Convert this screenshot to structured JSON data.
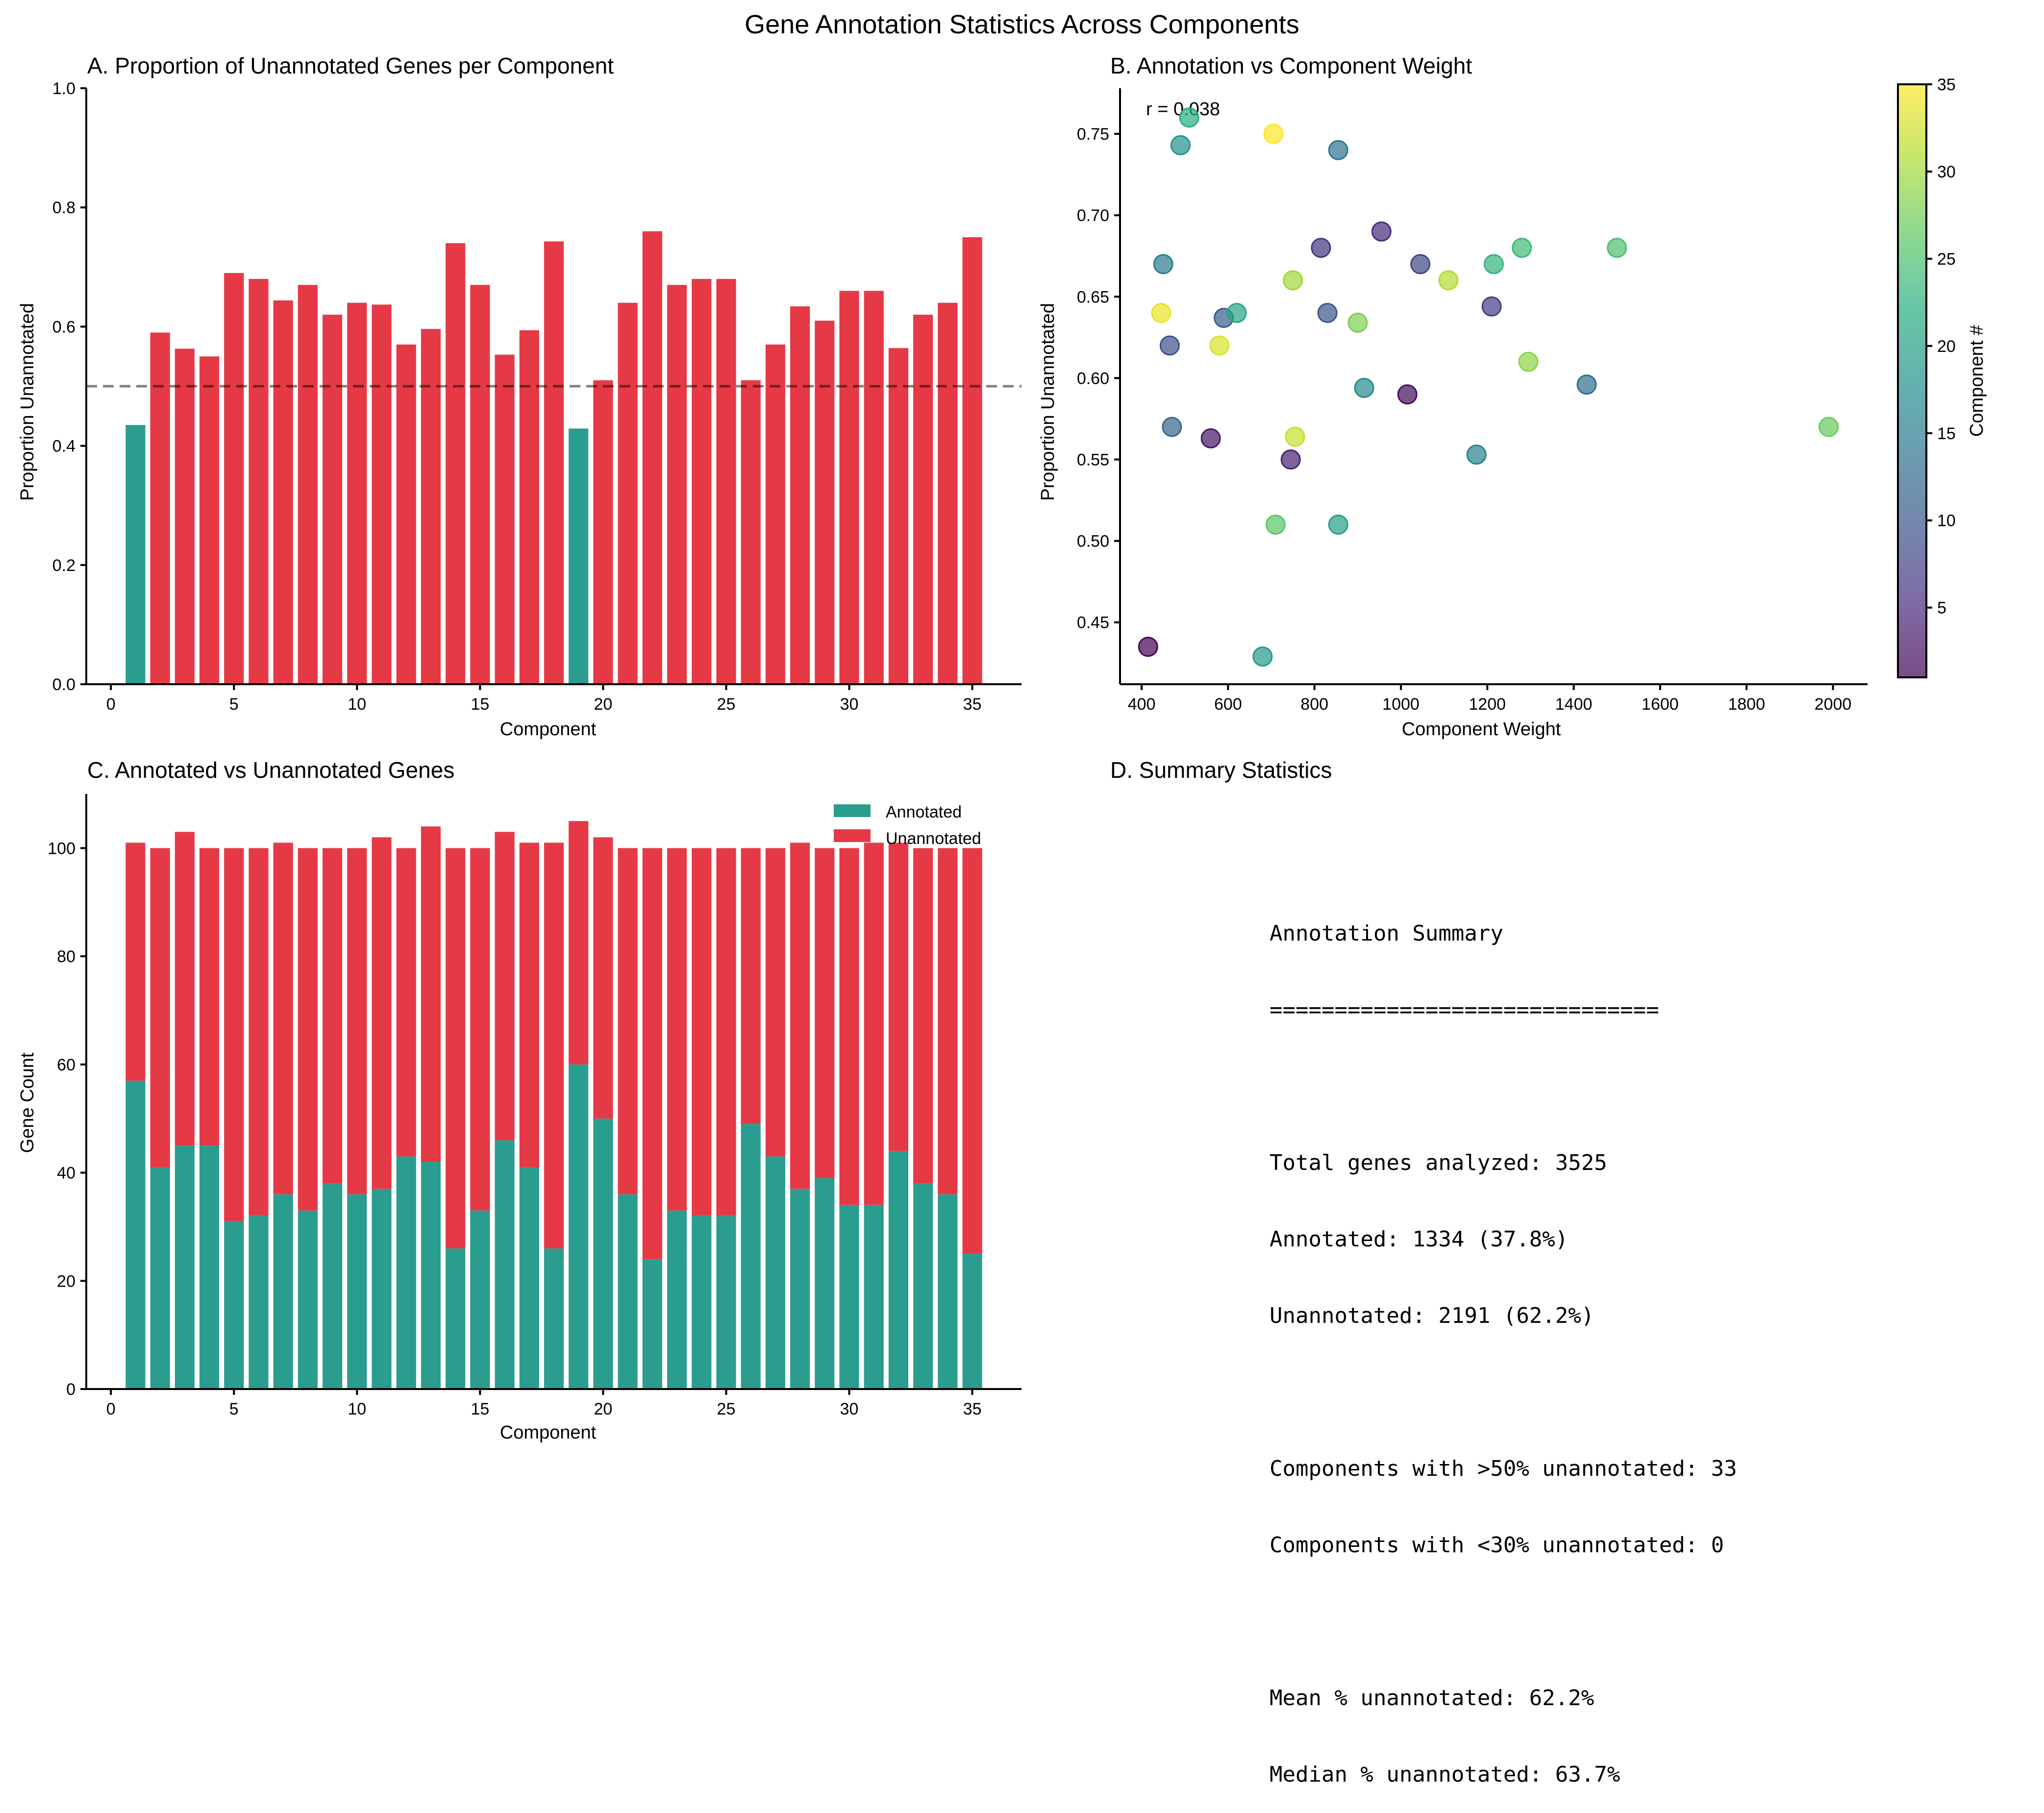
{
  "figure": {
    "title": "Gene Annotation Statistics Across Components",
    "colors": {
      "annotated": "#2a9d8f",
      "unannotated": "#e63946",
      "threshold_line": "#000000"
    }
  },
  "chart_data": [
    {
      "id": "A",
      "type": "bar",
      "title": "A. Proportion of Unannotated Genes per Component",
      "xlabel": "Component",
      "ylabel": "Proportion Unannotated",
      "xlim": [
        -1,
        37
      ],
      "ylim": [
        0,
        1.0
      ],
      "xticks": [
        0,
        5,
        10,
        15,
        20,
        25,
        30,
        35
      ],
      "yticks": [
        0.0,
        0.2,
        0.4,
        0.6,
        0.8,
        1.0
      ],
      "ytick_labels": [
        "0.0",
        "0.2",
        "0.4",
        "0.6",
        "0.8",
        "1.0"
      ],
      "threshold": 0.5,
      "threshold_style": "dashed",
      "color_rule": "teal if value < 0.5 else red",
      "categories": [
        1,
        2,
        3,
        4,
        5,
        6,
        7,
        8,
        9,
        10,
        11,
        12,
        13,
        14,
        15,
        16,
        17,
        18,
        19,
        20,
        21,
        22,
        23,
        24,
        25,
        26,
        27,
        28,
        29,
        30,
        31,
        32,
        33,
        34,
        35
      ],
      "values": [
        0.435,
        0.59,
        0.563,
        0.55,
        0.69,
        0.68,
        0.644,
        0.67,
        0.62,
        0.64,
        0.637,
        0.57,
        0.596,
        0.74,
        0.67,
        0.553,
        0.594,
        0.743,
        0.429,
        0.51,
        0.64,
        0.76,
        0.67,
        0.68,
        0.68,
        0.51,
        0.57,
        0.634,
        0.61,
        0.66,
        0.66,
        0.564,
        0.62,
        0.64,
        0.75
      ]
    },
    {
      "id": "B",
      "type": "scatter",
      "title": "B. Annotation vs Component Weight",
      "xlabel": "Component Weight",
      "ylabel": "Proportion Unannotated",
      "xlim": [
        350,
        2080
      ],
      "ylim": [
        0.412,
        0.778
      ],
      "xticks": [
        400,
        600,
        800,
        1000,
        1200,
        1400,
        1600,
        1800,
        2000
      ],
      "yticks": [
        0.45,
        0.5,
        0.55,
        0.6,
        0.65,
        0.7,
        0.75
      ],
      "ytick_labels": [
        "0.45",
        "0.50",
        "0.55",
        "0.60",
        "0.65",
        "0.70",
        "0.75"
      ],
      "annotation": "r = 0.038",
      "colorbar": {
        "label": "Component #",
        "range": [
          1,
          35
        ],
        "ticks": [
          5,
          10,
          15,
          20,
          25,
          30,
          35
        ],
        "colormap": "viridis",
        "alpha": 0.7
      },
      "points": [
        {
          "component": 1,
          "x": 415,
          "y": 0.435
        },
        {
          "component": 2,
          "x": 1015,
          "y": 0.59
        },
        {
          "component": 3,
          "x": 560,
          "y": 0.563
        },
        {
          "component": 4,
          "x": 745,
          "y": 0.55
        },
        {
          "component": 5,
          "x": 955,
          "y": 0.69
        },
        {
          "component": 6,
          "x": 815,
          "y": 0.68
        },
        {
          "component": 7,
          "x": 1210,
          "y": 0.644
        },
        {
          "component": 8,
          "x": 1045,
          "y": 0.67
        },
        {
          "component": 9,
          "x": 465,
          "y": 0.62
        },
        {
          "component": 10,
          "x": 830,
          "y": 0.64
        },
        {
          "component": 11,
          "x": 590,
          "y": 0.637
        },
        {
          "component": 12,
          "x": 470,
          "y": 0.57
        },
        {
          "component": 13,
          "x": 1430,
          "y": 0.596
        },
        {
          "component": 14,
          "x": 855,
          "y": 0.74
        },
        {
          "component": 15,
          "x": 450,
          "y": 0.67
        },
        {
          "component": 16,
          "x": 1175,
          "y": 0.553
        },
        {
          "component": 17,
          "x": 915,
          "y": 0.594
        },
        {
          "component": 18,
          "x": 490,
          "y": 0.743
        },
        {
          "component": 19,
          "x": 680,
          "y": 0.429
        },
        {
          "component": 20,
          "x": 855,
          "y": 0.51
        },
        {
          "component": 21,
          "x": 620,
          "y": 0.64
        },
        {
          "component": 22,
          "x": 510,
          "y": 0.76
        },
        {
          "component": 23,
          "x": 1215,
          "y": 0.67
        },
        {
          "component": 24,
          "x": 1280,
          "y": 0.68
        },
        {
          "component": 25,
          "x": 1500,
          "y": 0.68
        },
        {
          "component": 26,
          "x": 710,
          "y": 0.51
        },
        {
          "component": 27,
          "x": 1990,
          "y": 0.57
        },
        {
          "component": 28,
          "x": 900,
          "y": 0.634
        },
        {
          "component": 29,
          "x": 1295,
          "y": 0.61
        },
        {
          "component": 30,
          "x": 750,
          "y": 0.66
        },
        {
          "component": 31,
          "x": 1110,
          "y": 0.66
        },
        {
          "component": 32,
          "x": 755,
          "y": 0.564
        },
        {
          "component": 33,
          "x": 580,
          "y": 0.62
        },
        {
          "component": 34,
          "x": 445,
          "y": 0.64
        },
        {
          "component": 35,
          "x": 705,
          "y": 0.75
        }
      ]
    },
    {
      "id": "C",
      "type": "bar",
      "stacked": true,
      "title": "C. Annotated vs Unannotated Genes",
      "xlabel": "Component",
      "ylabel": "Gene Count",
      "xlim": [
        -1,
        37
      ],
      "ylim": [
        0,
        110
      ],
      "xticks": [
        0,
        5,
        10,
        15,
        20,
        25,
        30,
        35
      ],
      "yticks": [
        0,
        20,
        40,
        60,
        80,
        100
      ],
      "legend": {
        "position": "top-right",
        "entries": [
          "Annotated",
          "Unannotated"
        ]
      },
      "categories": [
        1,
        2,
        3,
        4,
        5,
        6,
        7,
        8,
        9,
        10,
        11,
        12,
        13,
        14,
        15,
        16,
        17,
        18,
        19,
        20,
        21,
        22,
        23,
        24,
        25,
        26,
        27,
        28,
        29,
        30,
        31,
        32,
        33,
        34,
        35
      ],
      "series": [
        {
          "name": "Annotated",
          "values": [
            57,
            41,
            45,
            45,
            31,
            32,
            36,
            33,
            38,
            36,
            37,
            43,
            42,
            26,
            33,
            46,
            41,
            26,
            60,
            50,
            36,
            24,
            33,
            32,
            32,
            49,
            43,
            37,
            39,
            34,
            34,
            44,
            38,
            36,
            25
          ]
        },
        {
          "name": "Unannotated",
          "values": [
            44,
            59,
            58,
            55,
            69,
            68,
            65,
            67,
            62,
            64,
            65,
            57,
            62,
            74,
            67,
            57,
            60,
            75,
            45,
            52,
            64,
            76,
            67,
            68,
            68,
            51,
            57,
            64,
            61,
            66,
            67,
            57,
            62,
            64,
            75
          ]
        }
      ]
    }
  ],
  "summary": {
    "title": "D. Summary Statistics",
    "lines": [
      "Annotation Summary",
      "==============================",
      "",
      "Total genes analyzed: 3525",
      "Annotated: 1334 (37.8%)",
      "Unannotated: 2191 (62.2%)",
      "",
      "Components with >50% unannotated: 33",
      "Components with <30% unannotated: 0",
      "",
      "Mean % unannotated: 62.2%",
      "Median % unannotated: 63.7%"
    ]
  }
}
